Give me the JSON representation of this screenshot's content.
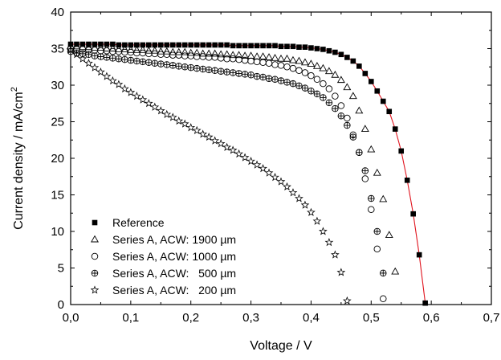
{
  "chart_data": {
    "type": "scatter",
    "xlabel": "Voltage / V",
    "ylabel_main": "Current density / mA/cm",
    "ylabel_sup": "2",
    "xlim": [
      0,
      0.7
    ],
    "ylim": [
      0,
      40
    ],
    "x_ticks": [
      "0,0",
      "0,1",
      "0,2",
      "0,3",
      "0,4",
      "0,5",
      "0,6",
      "0,7"
    ],
    "y_ticks": [
      "0",
      "5",
      "10",
      "15",
      "20",
      "25",
      "30",
      "35",
      "40"
    ],
    "grid": false,
    "legend_position": "bottom-left",
    "fit_line_color": "#e0141e",
    "series": [
      {
        "name": "Reference",
        "marker": "filled-square",
        "points": [
          [
            0.0,
            35.6
          ],
          [
            0.01,
            35.6
          ],
          [
            0.02,
            35.6
          ],
          [
            0.03,
            35.6
          ],
          [
            0.04,
            35.6
          ],
          [
            0.05,
            35.6
          ],
          [
            0.06,
            35.6
          ],
          [
            0.07,
            35.6
          ],
          [
            0.08,
            35.5
          ],
          [
            0.09,
            35.5
          ],
          [
            0.1,
            35.5
          ],
          [
            0.11,
            35.5
          ],
          [
            0.12,
            35.5
          ],
          [
            0.13,
            35.5
          ],
          [
            0.14,
            35.5
          ],
          [
            0.15,
            35.5
          ],
          [
            0.16,
            35.5
          ],
          [
            0.17,
            35.5
          ],
          [
            0.18,
            35.5
          ],
          [
            0.19,
            35.5
          ],
          [
            0.2,
            35.5
          ],
          [
            0.21,
            35.5
          ],
          [
            0.22,
            35.5
          ],
          [
            0.23,
            35.5
          ],
          [
            0.24,
            35.5
          ],
          [
            0.25,
            35.5
          ],
          [
            0.26,
            35.5
          ],
          [
            0.27,
            35.4
          ],
          [
            0.28,
            35.4
          ],
          [
            0.29,
            35.4
          ],
          [
            0.3,
            35.4
          ],
          [
            0.31,
            35.4
          ],
          [
            0.32,
            35.4
          ],
          [
            0.33,
            35.4
          ],
          [
            0.34,
            35.4
          ],
          [
            0.35,
            35.3
          ],
          [
            0.36,
            35.3
          ],
          [
            0.37,
            35.3
          ],
          [
            0.38,
            35.2
          ],
          [
            0.39,
            35.2
          ],
          [
            0.4,
            35.1
          ],
          [
            0.41,
            35.0
          ],
          [
            0.42,
            34.9
          ],
          [
            0.43,
            34.7
          ],
          [
            0.44,
            34.5
          ],
          [
            0.45,
            34.2
          ],
          [
            0.46,
            33.8
          ],
          [
            0.47,
            33.3
          ],
          [
            0.48,
            32.6
          ],
          [
            0.49,
            31.6
          ],
          [
            0.5,
            30.5
          ],
          [
            0.51,
            29.2
          ],
          [
            0.52,
            27.8
          ],
          [
            0.53,
            26.4
          ],
          [
            0.54,
            24.0
          ],
          [
            0.55,
            21.0
          ],
          [
            0.56,
            17.0
          ],
          [
            0.57,
            12.4
          ],
          [
            0.58,
            6.8
          ],
          [
            0.59,
            0.2
          ]
        ]
      },
      {
        "name": "Series A, ACW: 1900 µm",
        "marker": "open-triangle",
        "points": [
          [
            0.0,
            35.3
          ],
          [
            0.01,
            35.3
          ],
          [
            0.02,
            35.2
          ],
          [
            0.03,
            35.2
          ],
          [
            0.04,
            35.1
          ],
          [
            0.05,
            35.1
          ],
          [
            0.06,
            35.0
          ],
          [
            0.07,
            35.0
          ],
          [
            0.08,
            34.9
          ],
          [
            0.09,
            34.9
          ],
          [
            0.1,
            34.8
          ],
          [
            0.11,
            34.8
          ],
          [
            0.12,
            34.8
          ],
          [
            0.13,
            34.7
          ],
          [
            0.14,
            34.7
          ],
          [
            0.15,
            34.6
          ],
          [
            0.16,
            34.6
          ],
          [
            0.17,
            34.5
          ],
          [
            0.18,
            34.5
          ],
          [
            0.19,
            34.5
          ],
          [
            0.2,
            34.4
          ],
          [
            0.21,
            34.4
          ],
          [
            0.22,
            34.3
          ],
          [
            0.23,
            34.3
          ],
          [
            0.24,
            34.3
          ],
          [
            0.25,
            34.2
          ],
          [
            0.26,
            34.2
          ],
          [
            0.27,
            34.1
          ],
          [
            0.28,
            34.1
          ],
          [
            0.29,
            34.0
          ],
          [
            0.3,
            34.0
          ],
          [
            0.31,
            33.9
          ],
          [
            0.32,
            33.9
          ],
          [
            0.33,
            33.8
          ],
          [
            0.34,
            33.7
          ],
          [
            0.35,
            33.6
          ],
          [
            0.36,
            33.6
          ],
          [
            0.37,
            33.4
          ],
          [
            0.38,
            33.3
          ],
          [
            0.39,
            33.1
          ],
          [
            0.4,
            32.9
          ],
          [
            0.41,
            32.6
          ],
          [
            0.42,
            32.3
          ],
          [
            0.43,
            31.9
          ],
          [
            0.44,
            31.4
          ],
          [
            0.45,
            30.7
          ],
          [
            0.46,
            29.7
          ],
          [
            0.47,
            28.5
          ],
          [
            0.48,
            26.5
          ],
          [
            0.49,
            24.0
          ],
          [
            0.5,
            21.2
          ],
          [
            0.51,
            18.0
          ],
          [
            0.52,
            14.4
          ],
          [
            0.53,
            9.5
          ],
          [
            0.54,
            4.5
          ]
        ]
      },
      {
        "name": "Series A, ACW: 1000 µm",
        "marker": "open-circle",
        "points": [
          [
            0.0,
            35.0
          ],
          [
            0.01,
            34.9
          ],
          [
            0.02,
            34.9
          ],
          [
            0.03,
            34.8
          ],
          [
            0.04,
            34.8
          ],
          [
            0.05,
            34.7
          ],
          [
            0.06,
            34.7
          ],
          [
            0.07,
            34.6
          ],
          [
            0.08,
            34.6
          ],
          [
            0.09,
            34.5
          ],
          [
            0.1,
            34.5
          ],
          [
            0.11,
            34.4
          ],
          [
            0.12,
            34.4
          ],
          [
            0.13,
            34.3
          ],
          [
            0.14,
            34.3
          ],
          [
            0.15,
            34.2
          ],
          [
            0.16,
            34.2
          ],
          [
            0.17,
            34.1
          ],
          [
            0.18,
            34.1
          ],
          [
            0.19,
            34.0
          ],
          [
            0.2,
            34.0
          ],
          [
            0.21,
            33.9
          ],
          [
            0.22,
            33.9
          ],
          [
            0.23,
            33.8
          ],
          [
            0.24,
            33.8
          ],
          [
            0.25,
            33.7
          ],
          [
            0.26,
            33.6
          ],
          [
            0.27,
            33.6
          ],
          [
            0.28,
            33.5
          ],
          [
            0.29,
            33.4
          ],
          [
            0.3,
            33.3
          ],
          [
            0.31,
            33.2
          ],
          [
            0.32,
            33.1
          ],
          [
            0.33,
            33.0
          ],
          [
            0.34,
            32.8
          ],
          [
            0.35,
            32.7
          ],
          [
            0.36,
            32.5
          ],
          [
            0.37,
            32.3
          ],
          [
            0.38,
            32.0
          ],
          [
            0.39,
            31.7
          ],
          [
            0.4,
            31.3
          ],
          [
            0.41,
            30.8
          ],
          [
            0.42,
            30.2
          ],
          [
            0.43,
            29.5
          ],
          [
            0.44,
            28.5
          ],
          [
            0.45,
            27.2
          ],
          [
            0.46,
            25.5
          ],
          [
            0.47,
            23.2
          ],
          [
            0.48,
            20.8
          ],
          [
            0.49,
            17.2
          ],
          [
            0.5,
            13.0
          ],
          [
            0.51,
            7.6
          ],
          [
            0.52,
            0.8
          ]
        ]
      },
      {
        "name": "Series A, ACW:   500 µm",
        "marker": "circle-plus",
        "points": [
          [
            0.0,
            34.6
          ],
          [
            0.01,
            34.4
          ],
          [
            0.02,
            34.3
          ],
          [
            0.03,
            34.2
          ],
          [
            0.04,
            34.0
          ],
          [
            0.05,
            33.9
          ],
          [
            0.06,
            33.8
          ],
          [
            0.07,
            33.7
          ],
          [
            0.08,
            33.6
          ],
          [
            0.09,
            33.5
          ],
          [
            0.1,
            33.4
          ],
          [
            0.11,
            33.3
          ],
          [
            0.12,
            33.2
          ],
          [
            0.13,
            33.1
          ],
          [
            0.14,
            33.0
          ],
          [
            0.15,
            32.9
          ],
          [
            0.16,
            32.8
          ],
          [
            0.17,
            32.7
          ],
          [
            0.18,
            32.6
          ],
          [
            0.19,
            32.5
          ],
          [
            0.2,
            32.4
          ],
          [
            0.21,
            32.3
          ],
          [
            0.22,
            32.2
          ],
          [
            0.23,
            32.1
          ],
          [
            0.24,
            32.0
          ],
          [
            0.25,
            31.9
          ],
          [
            0.26,
            31.8
          ],
          [
            0.27,
            31.7
          ],
          [
            0.28,
            31.6
          ],
          [
            0.29,
            31.5
          ],
          [
            0.3,
            31.4
          ],
          [
            0.31,
            31.2
          ],
          [
            0.32,
            31.1
          ],
          [
            0.33,
            30.9
          ],
          [
            0.34,
            30.8
          ],
          [
            0.35,
            30.6
          ],
          [
            0.36,
            30.4
          ],
          [
            0.37,
            30.2
          ],
          [
            0.38,
            29.9
          ],
          [
            0.39,
            29.6
          ],
          [
            0.4,
            29.2
          ],
          [
            0.41,
            28.8
          ],
          [
            0.42,
            28.3
          ],
          [
            0.43,
            27.6
          ],
          [
            0.44,
            26.8
          ],
          [
            0.45,
            25.8
          ],
          [
            0.46,
            24.5
          ],
          [
            0.47,
            22.9
          ],
          [
            0.48,
            20.8
          ],
          [
            0.49,
            18.3
          ],
          [
            0.5,
            14.5
          ],
          [
            0.51,
            10.0
          ],
          [
            0.52,
            4.3
          ]
        ]
      },
      {
        "name": "Series A, ACW:   200 µm",
        "marker": "open-star",
        "points": [
          [
            0.0,
            34.8
          ],
          [
            0.01,
            34.2
          ],
          [
            0.02,
            33.6
          ],
          [
            0.03,
            33.0
          ],
          [
            0.04,
            32.4
          ],
          [
            0.05,
            31.8
          ],
          [
            0.06,
            31.2
          ],
          [
            0.07,
            30.6
          ],
          [
            0.08,
            30.1
          ],
          [
            0.09,
            29.5
          ],
          [
            0.1,
            29.0
          ],
          [
            0.11,
            28.5
          ],
          [
            0.12,
            28.0
          ],
          [
            0.13,
            27.5
          ],
          [
            0.14,
            27.0
          ],
          [
            0.15,
            26.5
          ],
          [
            0.16,
            26.0
          ],
          [
            0.17,
            25.6
          ],
          [
            0.18,
            25.1
          ],
          [
            0.19,
            24.7
          ],
          [
            0.2,
            24.2
          ],
          [
            0.21,
            23.8
          ],
          [
            0.22,
            23.3
          ],
          [
            0.23,
            22.9
          ],
          [
            0.24,
            22.4
          ],
          [
            0.25,
            22.0
          ],
          [
            0.26,
            21.5
          ],
          [
            0.27,
            21.1
          ],
          [
            0.28,
            20.6
          ],
          [
            0.29,
            20.1
          ],
          [
            0.3,
            19.6
          ],
          [
            0.31,
            19.1
          ],
          [
            0.32,
            18.6
          ],
          [
            0.33,
            18.0
          ],
          [
            0.34,
            17.4
          ],
          [
            0.35,
            16.8
          ],
          [
            0.36,
            16.1
          ],
          [
            0.37,
            15.3
          ],
          [
            0.38,
            14.5
          ],
          [
            0.39,
            13.6
          ],
          [
            0.4,
            12.6
          ],
          [
            0.41,
            11.4
          ],
          [
            0.42,
            10.0
          ],
          [
            0.43,
            8.5
          ],
          [
            0.44,
            6.8
          ],
          [
            0.45,
            4.4
          ],
          [
            0.46,
            0.5
          ]
        ]
      }
    ]
  }
}
